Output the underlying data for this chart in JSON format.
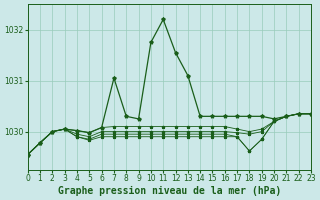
{
  "title": "Graphe pression niveau de la mer (hPa)",
  "background_color": "#cce8e8",
  "plot_bg_color": "#cce8e8",
  "grid_color": "#99ccbb",
  "line_color": "#1a5e1a",
  "marker_color": "#1a5e1a",
  "xlim": [
    0,
    23
  ],
  "ylim": [
    1029.25,
    1032.5
  ],
  "yticks": [
    1030,
    1031,
    1032
  ],
  "xticks": [
    0,
    1,
    2,
    3,
    4,
    5,
    6,
    7,
    8,
    9,
    10,
    11,
    12,
    13,
    14,
    15,
    16,
    17,
    18,
    19,
    20,
    21,
    22,
    23
  ],
  "series": [
    [
      1029.55,
      1029.78,
      1030.0,
      1030.05,
      1030.02,
      1029.98,
      1030.08,
      1031.05,
      1030.3,
      1030.25,
      1031.75,
      1032.2,
      1031.55,
      1031.1,
      1030.3,
      1030.3,
      1030.3,
      1030.3,
      1030.3,
      1030.3,
      1030.25,
      1030.3,
      1030.35,
      1030.35
    ],
    [
      1029.55,
      1029.78,
      1030.0,
      1030.05,
      1030.02,
      1029.98,
      1030.08,
      1030.1,
      1030.1,
      1030.1,
      1030.1,
      1030.1,
      1030.1,
      1030.1,
      1030.1,
      1030.1,
      1030.1,
      1030.05,
      1030.0,
      1030.05,
      1030.2,
      1030.3,
      1030.35,
      1030.35
    ],
    [
      1029.55,
      1029.78,
      1030.0,
      1030.05,
      1029.95,
      1029.9,
      1030.0,
      1030.0,
      1030.0,
      1030.0,
      1030.0,
      1030.0,
      1030.0,
      1030.0,
      1030.0,
      1030.0,
      1030.0,
      1029.98,
      1029.95,
      1030.0,
      1030.2,
      1030.3,
      1030.35,
      1030.35
    ],
    [
      1029.55,
      1029.78,
      1030.0,
      1030.05,
      1029.9,
      1029.85,
      1029.95,
      1029.95,
      1029.95,
      1029.95,
      1029.95,
      1029.95,
      1029.95,
      1029.95,
      1029.95,
      1029.95,
      1029.95,
      1029.9,
      1029.62,
      1029.85,
      1030.2,
      1030.3,
      1030.35,
      1030.35
    ],
    [
      1029.55,
      1029.78,
      1030.0,
      1030.05,
      1029.9,
      1029.83,
      1029.9,
      1029.9,
      1029.9,
      1029.9,
      1029.9,
      1029.9,
      1029.9,
      1029.9,
      1029.9,
      1029.9,
      1029.9,
      1029.9,
      1029.62,
      1029.85,
      1030.2,
      1030.3,
      1030.35,
      1030.35
    ]
  ],
  "title_fontsize": 7.0,
  "tick_fontsize": 5.5
}
